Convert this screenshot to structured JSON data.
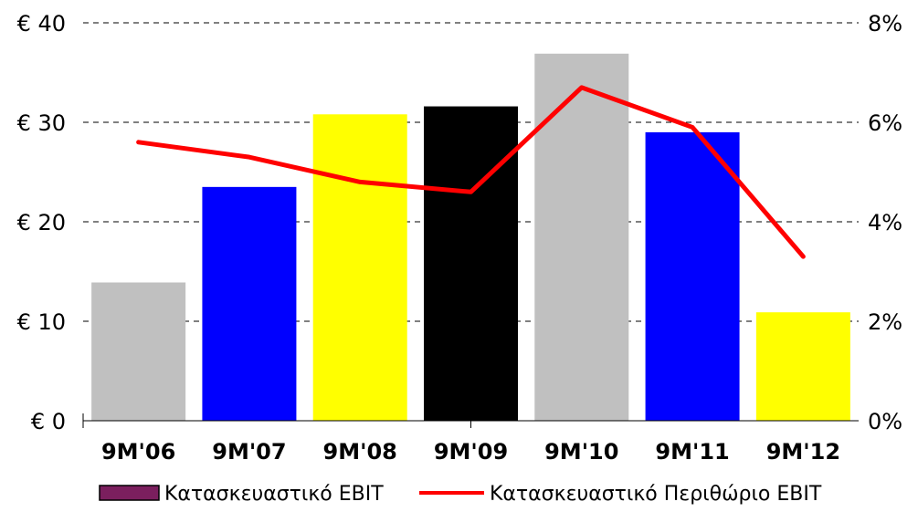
{
  "chart_data": {
    "type": "bar",
    "categories": [
      "9M'06",
      "9M'07",
      "9M'08",
      "9M'09",
      "9M'10",
      "9M'11",
      "9M'12"
    ],
    "series": [
      {
        "name": "Κατασκευαστικό EBIT",
        "type": "bar",
        "axis": "left",
        "values": [
          13.9,
          23.5,
          30.8,
          31.6,
          36.9,
          29.0,
          10.9
        ],
        "colors": [
          "#c0c0c0",
          "#0000ff",
          "#ffff00",
          "#000000",
          "#c0c0c0",
          "#0000ff",
          "#ffff00"
        ],
        "legend_color": "#7b1f5e"
      },
      {
        "name": "Κατασκευαστικό Περιθώριο EBIT",
        "type": "line",
        "axis": "right",
        "values": [
          5.6,
          5.3,
          4.8,
          4.6,
          6.7,
          5.9,
          3.3
        ],
        "color": "#ff0000"
      }
    ],
    "y_left": {
      "ticks": [
        "€ 0",
        "€ 10",
        "€ 20",
        "€ 30",
        "€ 40"
      ],
      "lim": [
        0,
        40
      ]
    },
    "y_right": {
      "ticks": [
        "0%",
        "2%",
        "4%",
        "6%",
        "8%"
      ],
      "lim": [
        0,
        8
      ]
    },
    "grid": true,
    "legend_position": "bottom"
  }
}
